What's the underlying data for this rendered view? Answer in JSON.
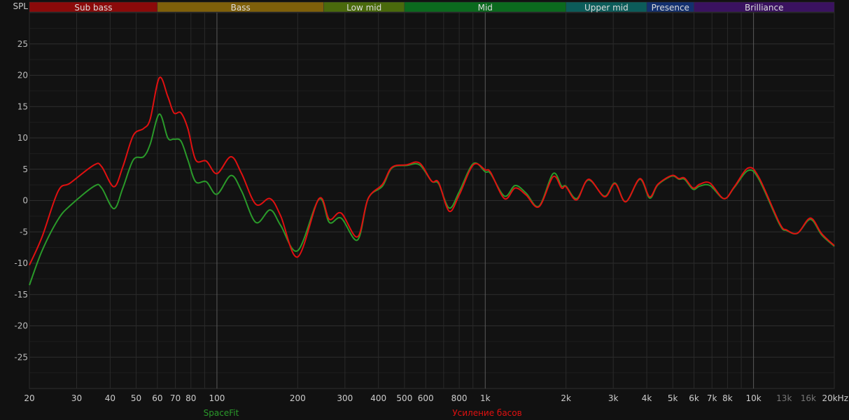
{
  "chart_data": {
    "type": "line",
    "ylabel": "SPL",
    "xscale": "log",
    "xlim": [
      20,
      20000
    ],
    "ylim": [
      -30,
      30
    ],
    "grid": true,
    "yticks": [
      25,
      20,
      15,
      10,
      5,
      0,
      -5,
      -10,
      -15,
      -20,
      -25
    ],
    "xticks": [
      {
        "v": 20,
        "label": "20"
      },
      {
        "v": 30,
        "label": "30"
      },
      {
        "v": 40,
        "label": "40"
      },
      {
        "v": 50,
        "label": "50"
      },
      {
        "v": 60,
        "label": "60"
      },
      {
        "v": 70,
        "label": "70"
      },
      {
        "v": 80,
        "label": "80"
      },
      {
        "v": 100,
        "label": "100"
      },
      {
        "v": 200,
        "label": "200"
      },
      {
        "v": 300,
        "label": "300"
      },
      {
        "v": 400,
        "label": "400"
      },
      {
        "v": 500,
        "label": "500"
      },
      {
        "v": 600,
        "label": "600"
      },
      {
        "v": 800,
        "label": "800"
      },
      {
        "v": 1000,
        "label": "1k"
      },
      {
        "v": 2000,
        "label": "2k"
      },
      {
        "v": 3000,
        "label": "3k"
      },
      {
        "v": 4000,
        "label": "4k"
      },
      {
        "v": 5000,
        "label": "5k"
      },
      {
        "v": 6000,
        "label": "6k"
      },
      {
        "v": 7000,
        "label": "7k"
      },
      {
        "v": 8000,
        "label": "8k"
      },
      {
        "v": 10000,
        "label": "10k"
      },
      {
        "v": 13000,
        "label": "13k",
        "dim": true
      },
      {
        "v": 16000,
        "label": "16k",
        "dim": true
      },
      {
        "v": 20000,
        "label": "20kHz"
      }
    ],
    "bands": [
      {
        "name": "Sub bass",
        "from": 20,
        "to": 60,
        "color": "#8b0a0a"
      },
      {
        "name": "Bass",
        "from": 60,
        "to": 250,
        "color": "#7f600a"
      },
      {
        "name": "Low mid",
        "from": 250,
        "to": 500,
        "color": "#4a6a0c"
      },
      {
        "name": "Mid",
        "from": 500,
        "to": 2000,
        "color": "#0b6a1e"
      },
      {
        "name": "Upper mid",
        "from": 2000,
        "to": 4000,
        "color": "#0c5c5a"
      },
      {
        "name": "Presence",
        "from": 4000,
        "to": 6000,
        "color": "#13306e"
      },
      {
        "name": "Brilliance",
        "from": 6000,
        "to": 20000,
        "color": "#3a1260"
      }
    ],
    "series": [
      {
        "name": "SpaceFit",
        "color": "#2a9a2a",
        "x": [
          20,
          22.3,
          25.6,
          28.4,
          34.9,
          37.2,
          41.3,
          44.6,
          48.8,
          53.3,
          56.4,
          61,
          65.6,
          69.1,
          73.4,
          77.9,
          83.3,
          91.3,
          100,
          112.8,
          123.6,
          139.7,
          157.9,
          173,
          200,
          240,
          262.5,
          290.4,
          334,
          366,
          414,
          449,
          509,
          569,
          631,
          670,
          734,
          800,
          903,
          1000,
          1047,
          1180,
          1293,
          1419,
          1586,
          1790,
          1925,
          2000,
          2192,
          2426,
          2784,
          3048,
          3340,
          3770,
          4100,
          4400,
          4960,
          5270,
          5530,
          5950,
          6300,
          6880,
          7760,
          8480,
          9550,
          10470,
          12500,
          13300,
          14600,
          16300,
          17960,
          20000
        ],
        "y": [
          -13.5,
          -8,
          -3,
          -0.8,
          2.3,
          2,
          -1.3,
          2,
          6.5,
          7,
          9,
          13.8,
          10,
          9.8,
          9.5,
          6.5,
          3,
          3,
          1,
          4,
          1.5,
          -3.5,
          -1.5,
          -4,
          -8,
          0.2,
          -3.5,
          -2.8,
          -6.3,
          0.3,
          2.3,
          5.2,
          5.6,
          5.7,
          3.1,
          2.7,
          -1.2,
          1.4,
          5.9,
          4.6,
          4.3,
          0.7,
          2.4,
          1.2,
          -0.9,
          4.3,
          2.3,
          2.3,
          0.3,
          3.3,
          0.7,
          2.8,
          -0.2,
          3.4,
          0.4,
          2.5,
          3.9,
          3.4,
          3.4,
          1.8,
          2.3,
          2.4,
          0.3,
          2.1,
          4.8,
          3.4,
          -3.8,
          -4.8,
          -5.2,
          -3,
          -5.5,
          -7.3
        ]
      },
      {
        "name": "Усиление басов",
        "color": "#e01010",
        "x": [
          20,
          22.3,
          25.6,
          28.4,
          34.9,
          37.2,
          41.3,
          44.6,
          48.8,
          53.3,
          56.4,
          61,
          65.6,
          69.1,
          73.4,
          77.9,
          83.3,
          91.3,
          100,
          112.8,
          123.6,
          139.7,
          157.9,
          173,
          200,
          240,
          262.5,
          290.4,
          334,
          366,
          414,
          449,
          509,
          569,
          631,
          670,
          734,
          800,
          903,
          1000,
          1047,
          1180,
          1293,
          1419,
          1586,
          1790,
          1925,
          2000,
          2192,
          2426,
          2784,
          3048,
          3340,
          3770,
          4100,
          4400,
          4960,
          5270,
          5530,
          5950,
          6300,
          6880,
          7760,
          8480,
          9550,
          10470,
          12500,
          13300,
          14600,
          16300,
          17960,
          20000
        ],
        "y": [
          -10.3,
          -5.8,
          1.5,
          2.8,
          5.7,
          5.4,
          2.2,
          5.4,
          10.4,
          11.5,
          13,
          19.6,
          16.6,
          14,
          14,
          11.5,
          6.5,
          6.3,
          4.3,
          7,
          4.3,
          -0.6,
          0.3,
          -2.5,
          -9,
          0.3,
          -3,
          -2,
          -5.8,
          0.3,
          2.6,
          5.3,
          5.7,
          6,
          3.1,
          2.9,
          -1.7,
          0.9,
          5.7,
          4.9,
          4.5,
          0.3,
          2,
          0.9,
          -1,
          3.8,
          2,
          2.2,
          0.1,
          3.4,
          0.6,
          2.7,
          -0.2,
          3.5,
          0.6,
          2.6,
          4,
          3.5,
          3.6,
          2,
          2.6,
          2.8,
          0.3,
          2.2,
          5.2,
          3.7,
          -3.6,
          -4.7,
          -5.2,
          -2.8,
          -5.3,
          -7.2
        ]
      }
    ]
  }
}
